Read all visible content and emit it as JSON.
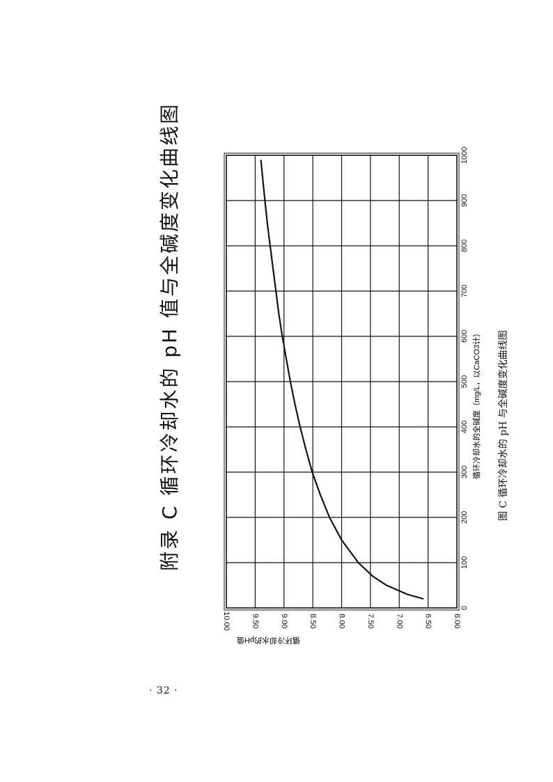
{
  "page": {
    "appendix_title": "附录 C   循环冷却水的 pH 值与全碱度变化曲线图",
    "figure_caption": "图 C   循环冷却水的 pH 与全碱度变化曲线图",
    "page_number": "· 32 ·"
  },
  "chart_data": {
    "type": "line",
    "title": "",
    "xlabel": "循环冷却水的全碱度（mg/L，以CaCO3计）",
    "ylabel": "循环冷却水的pH值",
    "xlim": [
      0,
      1000
    ],
    "ylim": [
      6.0,
      10.0
    ],
    "x_ticks": [
      "0",
      "100",
      "200",
      "300",
      "400",
      "500",
      "600",
      "700",
      "800",
      "900",
      "1000"
    ],
    "y_ticks": [
      "10.00",
      "9.50",
      "9.00",
      "8.50",
      "8.00",
      "7.50",
      "7.00",
      "6.50",
      "6.00"
    ],
    "grid": true,
    "series": [
      {
        "x": [
          20,
          30,
          50,
          70,
          100,
          150,
          200,
          250,
          300,
          350,
          400,
          450,
          500,
          550,
          600,
          650,
          700,
          750,
          800,
          850,
          900,
          950,
          990
        ],
        "y": [
          6.58,
          6.86,
          7.22,
          7.46,
          7.71,
          8.0,
          8.21,
          8.37,
          8.51,
          8.62,
          8.72,
          8.81,
          8.89,
          8.96,
          9.03,
          9.09,
          9.14,
          9.19,
          9.24,
          9.29,
          9.33,
          9.37,
          9.4
        ]
      }
    ]
  }
}
